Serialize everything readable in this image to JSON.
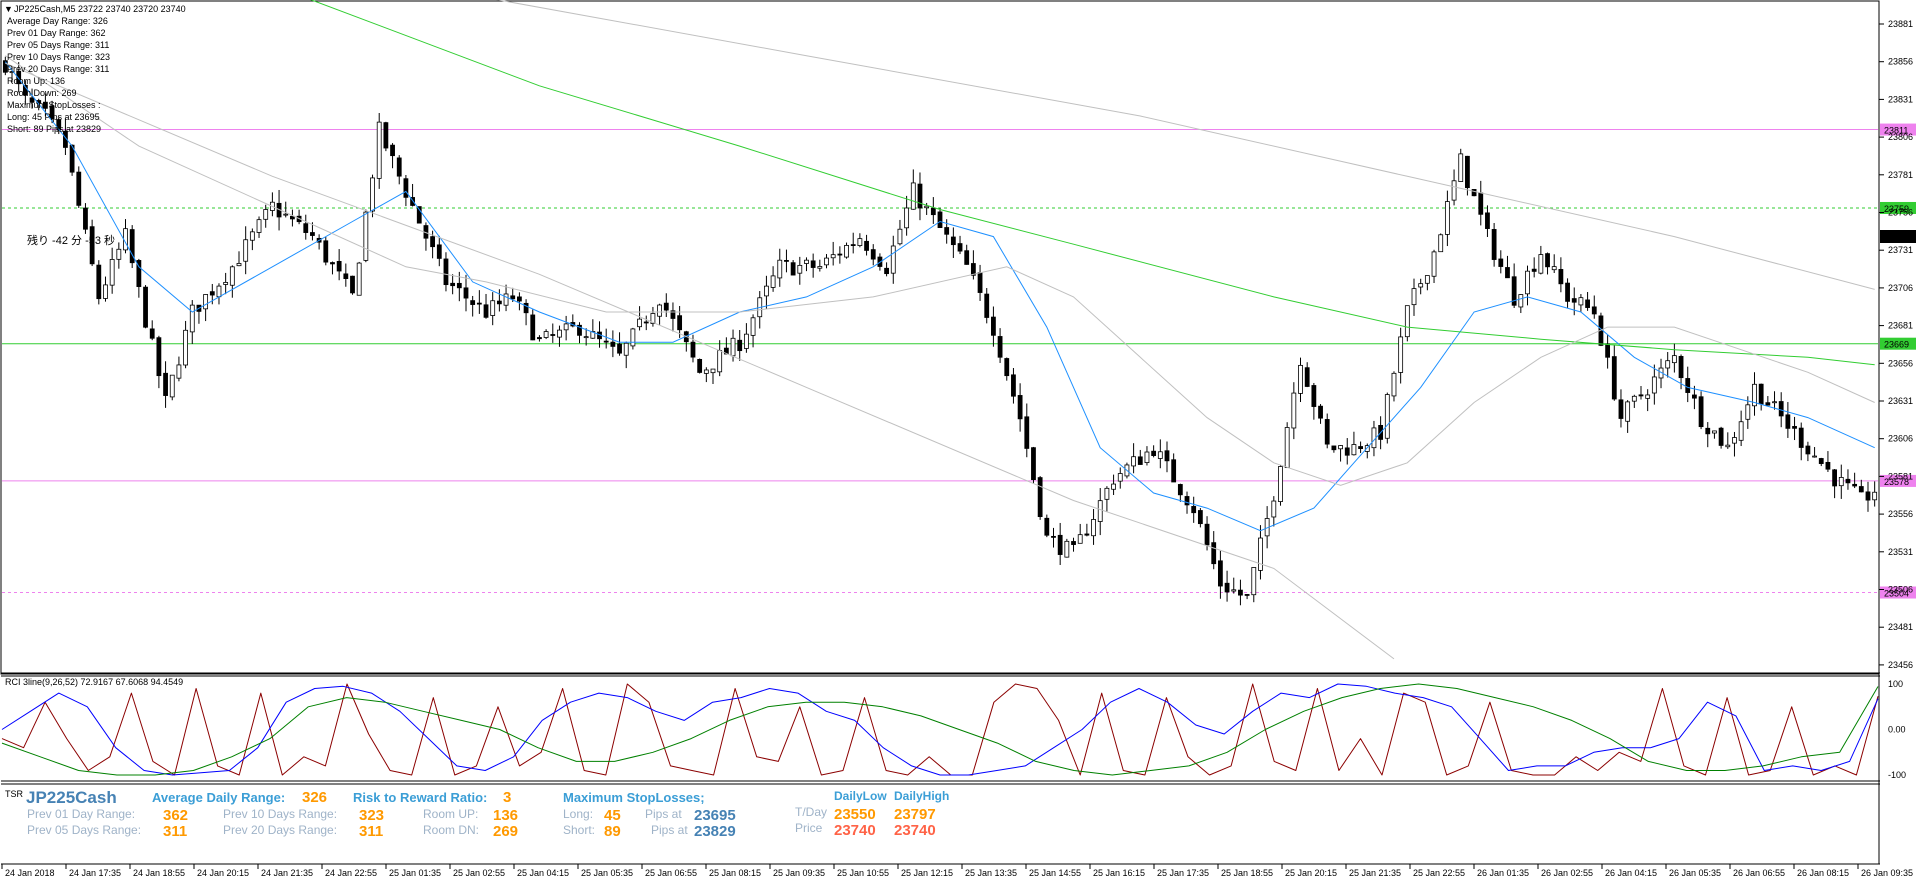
{
  "header": {
    "symbol_line": "JP225Cash,M5  23722 23740 23720 23740",
    "lines": [
      "Average Day  Range: 326",
      "Prev 01  Day  Range: 362",
      "Prev 05  Days Range: 311",
      "Prev 10  Days Range: 323",
      "Prev 20  Days Range: 311",
      "Room Up:    136",
      "Room Down: 269",
      "Maximum StopLosses :",
      "Long: 45 Pips at 23695",
      "Short: 89 Pips at 23829"
    ],
    "timer_text": "残り -42 分 -53 秒"
  },
  "price_levels": [
    {
      "label": "23811",
      "price": 23811,
      "color": "#ee82ee",
      "style": "solid"
    },
    {
      "label": "23759",
      "price": 23759,
      "color": "#32cd32",
      "style": "dashed"
    },
    {
      "label": "23669",
      "price": 23669,
      "color": "#32cd32",
      "style": "solid"
    },
    {
      "label": "23578",
      "price": 23578,
      "color": "#ee82ee",
      "style": "solid"
    },
    {
      "label": "23504",
      "price": 23504,
      "color": "#ee82ee",
      "style": "dashed"
    }
  ],
  "current_price_label": "23740",
  "rci_label": "RCI 3line(9,26,52) 72.9167 67.6068 94.4549",
  "tsr_panel": {
    "tag": "TSR",
    "title": "JP225Cash",
    "avg_label": "Average Daily Range:",
    "avg_value": "326",
    "rr_label": "Risk to Reward Ratio:",
    "rr_value": "3",
    "msl_label": "Maximum StopLosses;",
    "prev01_label": "Prev 01 Day Range:",
    "prev01_value": "362",
    "prev05_label": "Prev 05 Days Range:",
    "prev05_value": "311",
    "prev10_label": "Prev 10 Days Range:",
    "prev10_value": "323",
    "prev20_label": "Prev 20 Days Range:",
    "prev20_value": "311",
    "roomup_label": "Room UP:",
    "roomup_value": "136",
    "roomdn_label": "Room DN:",
    "roomdn_value": "269",
    "long_label": "Long:",
    "long_value": "45",
    "short_label": "Short:",
    "short_value": "89",
    "pipsat_label": "Pips at",
    "long_price": "23695",
    "short_price": "23829",
    "dailylow_label": "DailyLow",
    "dailyhigh_label": "DailyHigh",
    "tday_label": "T/Day",
    "price_label": "Price",
    "tday_low": "23550",
    "tday_high": "23797",
    "price_low": "23740",
    "price_high": "23740"
  },
  "colors": {
    "ma_blue": "#1e90ff",
    "ma_green": "#32cd32",
    "ma_gray": "#c0c0c0",
    "rci_red": "#8b0000",
    "rci_blue": "#0000ff",
    "rci_green": "#008000",
    "candle": "#000000",
    "orange": "#ff9900",
    "steel": "#4682b4"
  },
  "chart_data": [
    {
      "type": "candlestick",
      "title": "JP225Cash,M5",
      "ylim": [
        23456,
        23881
      ],
      "y_ticks": [
        23881,
        23856,
        23831,
        23806,
        23781,
        23756,
        23731,
        23706,
        23681,
        23656,
        23631,
        23606,
        23581,
        23556,
        23531,
        23506,
        23481,
        23456
      ],
      "x_ticks": [
        "24 Jan 2018",
        "24 Jan 17:35",
        "24 Jan 18:55",
        "24 Jan 20:15",
        "24 Jan 21:35",
        "24 Jan 22:55",
        "25 Jan 01:35",
        "25 Jan 02:55",
        "25 Jan 04:15",
        "25 Jan 05:35",
        "25 Jan 06:55",
        "25 Jan 08:15",
        "25 Jan 09:35",
        "25 Jan 10:55",
        "25 Jan 12:15",
        "25 Jan 13:35",
        "25 Jan 14:55",
        "25 Jan 16:15",
        "25 Jan 17:35",
        "25 Jan 18:55",
        "25 Jan 20:15",
        "25 Jan 21:35",
        "25 Jan 22:55",
        "26 Jan 01:35",
        "26 Jan 02:55",
        "26 Jan 04:15",
        "26 Jan 05:35",
        "26 Jan 06:55",
        "26 Jan 08:15",
        "26 Jan 09:35"
      ],
      "close_path": [
        [
          0,
          23855
        ],
        [
          3,
          23830
        ],
        [
          6,
          23820
        ],
        [
          9,
          23800
        ],
        [
          14,
          23700
        ],
        [
          18,
          23740
        ],
        [
          24,
          23630
        ],
        [
          28,
          23690
        ],
        [
          34,
          23720
        ],
        [
          40,
          23760
        ],
        [
          46,
          23740
        ],
        [
          52,
          23700
        ],
        [
          56,
          23810
        ],
        [
          60,
          23770
        ],
        [
          66,
          23710
        ],
        [
          72,
          23690
        ],
        [
          76,
          23700
        ],
        [
          80,
          23670
        ],
        [
          86,
          23680
        ],
        [
          92,
          23660
        ],
        [
          98,
          23700
        ],
        [
          104,
          23650
        ],
        [
          110,
          23670
        ],
        [
          116,
          23720
        ],
        [
          122,
          23720
        ],
        [
          128,
          23740
        ],
        [
          132,
          23720
        ],
        [
          136,
          23770
        ],
        [
          140,
          23745
        ],
        [
          144,
          23720
        ],
        [
          148,
          23680
        ],
        [
          152,
          23620
        ],
        [
          156,
          23540
        ],
        [
          160,
          23530
        ],
        [
          166,
          23580
        ],
        [
          172,
          23600
        ],
        [
          178,
          23560
        ],
        [
          182,
          23510
        ],
        [
          186,
          23500
        ],
        [
          190,
          23570
        ],
        [
          194,
          23660
        ],
        [
          198,
          23600
        ],
        [
          202,
          23600
        ],
        [
          206,
          23610
        ],
        [
          210,
          23690
        ],
        [
          214,
          23730
        ],
        [
          218,
          23790
        ],
        [
          222,
          23740
        ],
        [
          226,
          23700
        ],
        [
          230,
          23730
        ],
        [
          234,
          23700
        ],
        [
          238,
          23690
        ],
        [
          242,
          23620
        ],
        [
          246,
          23640
        ],
        [
          250,
          23660
        ],
        [
          254,
          23620
        ],
        [
          258,
          23600
        ],
        [
          262,
          23640
        ],
        [
          266,
          23620
        ],
        [
          270,
          23600
        ],
        [
          274,
          23580
        ],
        [
          278,
          23565
        ],
        [
          280,
          23572
        ]
      ],
      "moving_averages": [
        {
          "color": "blue",
          "path": [
            [
              0,
              23856
            ],
            [
              10,
              23800
            ],
            [
              20,
              23720
            ],
            [
              28,
              23690
            ],
            [
              40,
              23720
            ],
            [
              52,
              23750
            ],
            [
              60,
              23770
            ],
            [
              70,
              23710
            ],
            [
              80,
              23690
            ],
            [
              92,
              23670
            ],
            [
              100,
              23670
            ],
            [
              110,
              23690
            ],
            [
              120,
              23700
            ],
            [
              130,
              23720
            ],
            [
              140,
              23750
            ],
            [
              148,
              23740
            ],
            [
              156,
              23680
            ],
            [
              164,
              23600
            ],
            [
              172,
              23570
            ],
            [
              180,
              23560
            ],
            [
              188,
              23545
            ],
            [
              196,
              23560
            ],
            [
              204,
              23600
            ],
            [
              212,
              23640
            ],
            [
              220,
              23690
            ],
            [
              228,
              23700
            ],
            [
              236,
              23690
            ],
            [
              244,
              23660
            ],
            [
              252,
              23640
            ],
            [
              262,
              23630
            ],
            [
              270,
              23620
            ],
            [
              280,
              23600
            ]
          ]
        },
        {
          "color": "green",
          "path": [
            [
              44,
              23900
            ],
            [
              80,
              23840
            ],
            [
              110,
              23800
            ],
            [
              140,
              23758
            ],
            [
              160,
              23735
            ],
            [
              190,
              23700
            ],
            [
              210,
              23680
            ],
            [
              230,
              23672
            ],
            [
              250,
              23665
            ],
            [
              270,
              23660
            ],
            [
              280,
              23655
            ]
          ]
        },
        {
          "color": "gray",
          "path": [
            [
              0,
              23860
            ],
            [
              20,
              23800
            ],
            [
              40,
              23760
            ],
            [
              60,
              23720
            ],
            [
              72,
              23710
            ],
            [
              90,
              23690
            ],
            [
              110,
              23690
            ],
            [
              130,
              23700
            ],
            [
              150,
              23720
            ],
            [
              160,
              23700
            ],
            [
              170,
              23660
            ],
            [
              180,
              23620
            ],
            [
              190,
              23590
            ],
            [
              200,
              23575
            ],
            [
              210,
              23590
            ],
            [
              220,
              23630
            ],
            [
              230,
              23660
            ],
            [
              240,
              23680
            ],
            [
              250,
              23680
            ],
            [
              260,
              23665
            ],
            [
              270,
              23650
            ],
            [
              280,
              23630
            ]
          ]
        },
        {
          "color": "gray",
          "path": [
            [
              70,
              23900
            ],
            [
              120,
              23860
            ],
            [
              170,
              23820
            ],
            [
              210,
              23780
            ],
            [
              250,
              23740
            ],
            [
              280,
              23705
            ]
          ]
        },
        {
          "color": "gray",
          "path": [
            [
              0,
              23855
            ],
            [
              40,
              23780
            ],
            [
              80,
              23715
            ],
            [
              120,
              23640
            ],
            [
              160,
              23565
            ],
            [
              190,
              23520
            ],
            [
              208,
              23460
            ]
          ]
        }
      ]
    },
    {
      "type": "line",
      "title": "RCI 3line(9,26,52) 72.9167 67.6068 94.4549",
      "ylim": [
        -100,
        100
      ],
      "y_ticks": [
        100,
        0.0,
        -100
      ],
      "series": [
        {
          "name": "9",
          "color": "red",
          "values": [
            -20,
            -40,
            60,
            -20,
            -90,
            -60,
            80,
            -70,
            -100,
            90,
            -80,
            -100,
            80,
            -100,
            -60,
            -80,
            100,
            -10,
            -90,
            -100,
            70,
            -100,
            -80,
            50,
            -80,
            -50,
            90,
            -90,
            -100,
            100,
            60,
            -80,
            -90,
            -100,
            90,
            -60,
            -70,
            50,
            -100,
            -90,
            70,
            -90,
            -100,
            -60,
            -100,
            -100,
            60,
            100,
            90,
            20,
            -100,
            80,
            -90,
            -100,
            70,
            -60,
            -100,
            -80,
            100,
            -70,
            -90,
            90,
            -90,
            -20,
            -100,
            80,
            60,
            -100,
            -80,
            60,
            -90,
            -100,
            -100,
            -60,
            -90,
            -50,
            -70,
            90,
            -80,
            -100,
            70,
            -100,
            -90,
            50,
            -100,
            -80,
            -100,
            72.9
          ]
        },
        {
          "name": "26",
          "color": "blue",
          "values": [
            0,
            40,
            80,
            50,
            -40,
            -90,
            -100,
            -95,
            -90,
            -40,
            60,
            90,
            95,
            80,
            40,
            -20,
            -80,
            -90,
            -60,
            20,
            60,
            80,
            70,
            40,
            20,
            60,
            70,
            90,
            80,
            40,
            20,
            -40,
            -80,
            -100,
            -100,
            -90,
            -80,
            -40,
            0,
            60,
            90,
            60,
            10,
            -10,
            40,
            80,
            70,
            100,
            95,
            80,
            70,
            50,
            -20,
            -90,
            -80,
            -80,
            -50,
            -40,
            -40,
            -20,
            60,
            30,
            -90,
            -80,
            -90,
            -70,
            67.6
          ]
        },
        {
          "name": "52",
          "color": "green",
          "values": [
            -30,
            -60,
            -90,
            -100,
            -100,
            -90,
            -60,
            -20,
            50,
            70,
            60,
            40,
            20,
            0,
            -40,
            -70,
            -70,
            -50,
            -20,
            20,
            50,
            60,
            60,
            50,
            30,
            0,
            -30,
            -70,
            -90,
            -100,
            -90,
            -80,
            -50,
            0,
            40,
            70,
            90,
            100,
            90,
            70,
            50,
            20,
            -20,
            -70,
            -90,
            -90,
            -80,
            -60,
            -50,
            94.5
          ]
        }
      ]
    }
  ]
}
